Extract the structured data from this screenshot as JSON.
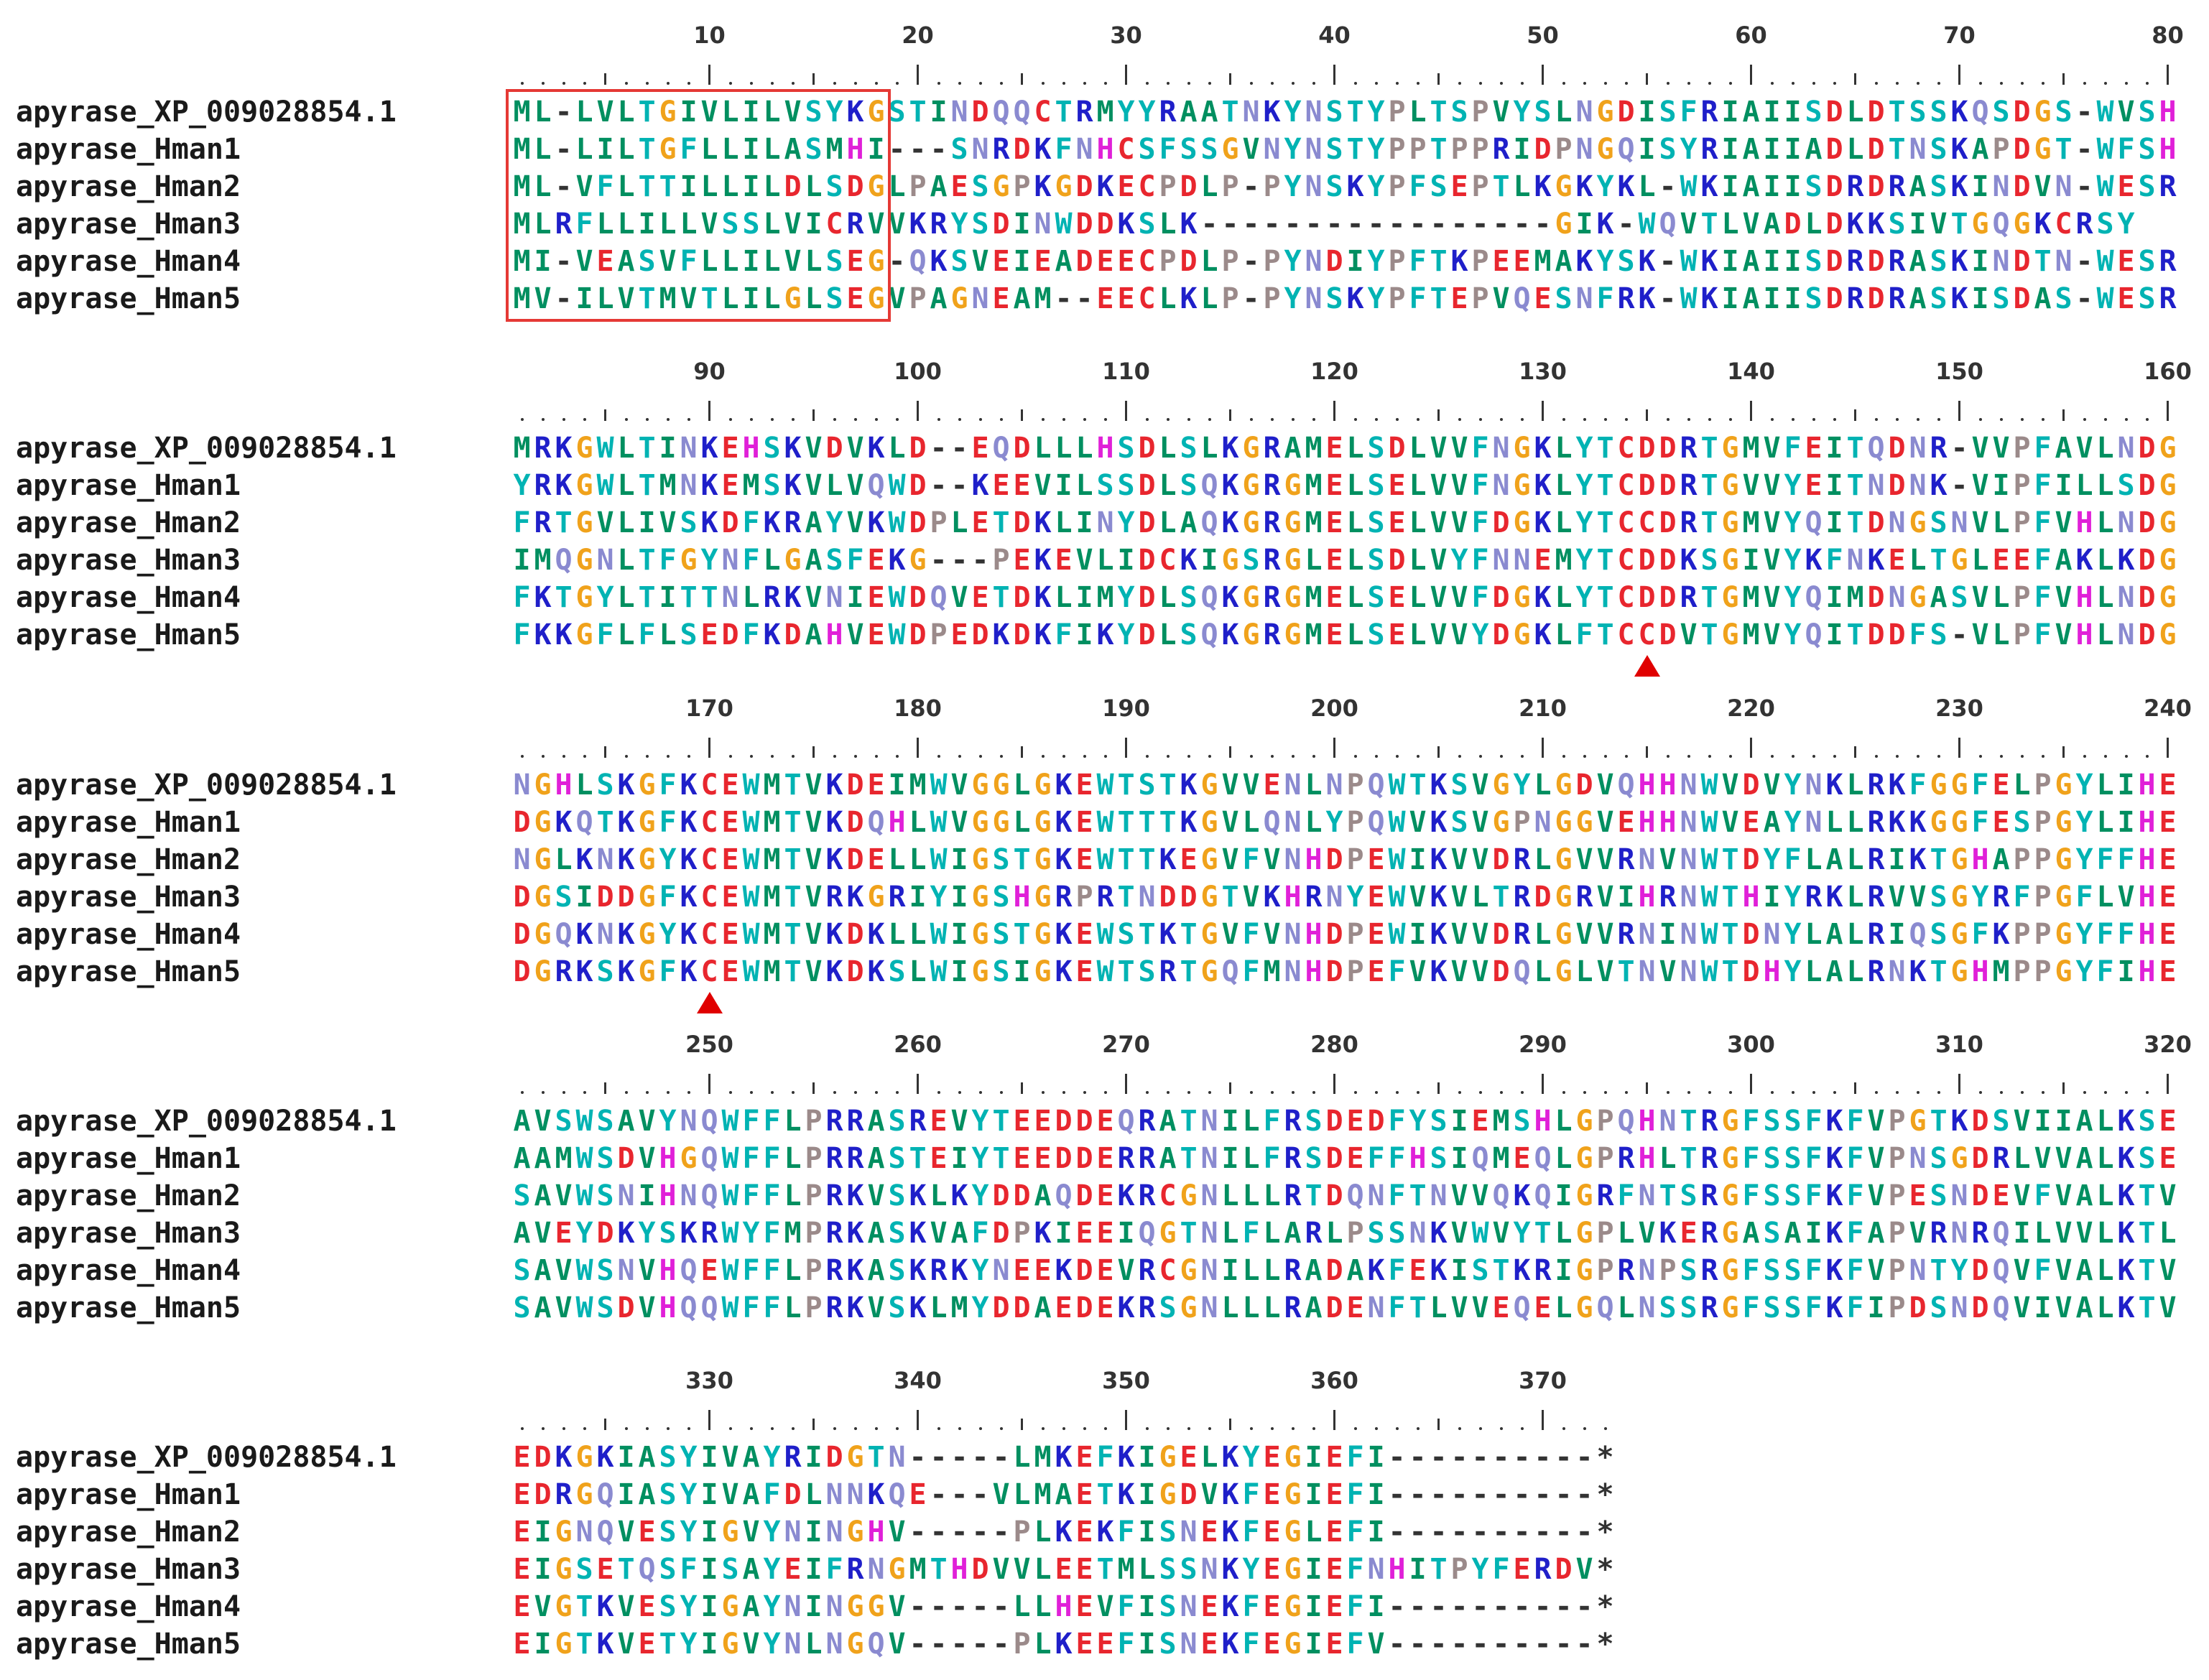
{
  "colors": {
    "hydrophobic": "#008f60",
    "polar": "#00b3b3",
    "acidic": "#e8262e",
    "basic": "#1f1fc9",
    "aromatic": "#1a9fd4",
    "glycine": "#f0a21b",
    "proline": "#9b8a8a",
    "his": "#e020d8",
    "amide": "#8a8ad0",
    "gap": "#333333",
    "highlight_box": "#e53935",
    "marker": "#e00000"
  },
  "blocks": [
    {
      "start": 1,
      "numbers": [
        "10",
        "20",
        "30",
        "40",
        "50",
        "60",
        "70",
        "80"
      ],
      "rows": [
        {
          "name": "apyrase_XP_009028854.1",
          "seq": "ML-LVLTGIVLILVSYKGSTINDQQCTRMYYRAATNKYNSTYPLTSPVYSLNGDISFRIAIISDLDTSSKQSDGS-WVSH"
        },
        {
          "name": "apyrase_Hman1",
          "seq": "ML-LILTGFLLILASMHI---SNRDKFNHCSFSSGVNYNSTYPPTPPRIDPNGQISYRIAIIADLDTNSKAPDGT-WFSH"
        },
        {
          "name": "apyrase_Hman2",
          "seq": "ML-VFLTTILLILDLSDGLPAESGPKGDKECPDLP-PYNSKYPFSEPTLKGKYKL-WKIAIISDRDRASKINDVN-WESR"
        },
        {
          "name": "apyrase_Hman3",
          "seq": "MLRFLLILLVSSLVICRVVKRYSDINWDDKSLK-----------------GIK-WQVTLVADLDKKSIVTGQGKCRSY"
        },
        {
          "name": "apyrase_Hman4",
          "seq": "MI-VEASVFLLILVLSEG-QKSVEIEADEECPDLP-PYNDIYPFTKPEEMAKYSK-WKIAIISDRDRASKINDTN-WESR"
        },
        {
          "name": "apyrase_Hman5",
          "seq": "MV-ILVTMVTLILGLSEGVPAGNEAM--EECLKLP-PYNSKYPFTEPVQESNFRK-WKIAIISDRDRASKISDAS-WESR"
        }
      ]
    },
    {
      "start": 81,
      "numbers": [
        "90",
        "100",
        "110",
        "120",
        "130",
        "140",
        "150",
        "160"
      ],
      "rows": [
        {
          "name": "apyrase_XP_009028854.1",
          "seq": "MRKGWLTINKEHSKVDVKLD--EQDLLLHSDLSLKGRAMELSDLVVFNGKLYTCDDRTGMVFEITQDNR-VVPFAVLNDG"
        },
        {
          "name": "apyrase_Hman1",
          "seq": "YRKGWLTMNKEMSKVLVQWD--KEEVILSSDLSQKGRGMELSELVVFNGKLYTCDDRTGVVYEITNDNK-VIPFILLSDG"
        },
        {
          "name": "apyrase_Hman2",
          "seq": "FRTGVLIVSKDFKRAYVKWDPLETDKLINYDLAQKGRGMELSELVVFDGKLYTCCDRTGMVYQITDNGSNVLPFVHLNDG"
        },
        {
          "name": "apyrase_Hman3",
          "seq": "IMQGNLTFGYNFLGASFEKG---PEKEVLIDCKIGSRGLELSDLVYFNNEMYTCDDKSGIVYKFNKELTGLEEFAKLKDG"
        },
        {
          "name": "apyrase_Hman4",
          "seq": "FKTGYLTITTNLRKVNIEWDQVETDKLIMYDLSQKGRGMELSELVVFDGKLYTCDDRTGMVYQIMDNGASVLPFVHLNDG"
        },
        {
          "name": "apyrase_Hman5",
          "seq": "FKKGFLFLSEDFKDAHVEWDPEDKDKFIKYDLSQKGRGMELSELVVYDGKLFTCCDVTGMVYQITDDFS-VLPFVHLNDG"
        }
      ]
    },
    {
      "start": 161,
      "numbers": [
        "170",
        "180",
        "190",
        "200",
        "210",
        "220",
        "230",
        "240"
      ],
      "rows": [
        {
          "name": "apyrase_XP_009028854.1",
          "seq": "NGHLSKGFKCEWMTVKDEIMWVGGLGKEWTSTKGVVENLNPQWTKSVGYLGDVQHHNWVDVYNKLRKFGGFELPGYLIHE"
        },
        {
          "name": "apyrase_Hman1",
          "seq": "DGKQTKGFKCEWMTVKDQHLWVGGLGKEWTTTKGVLQNLYPQWVKSVGPNGGVEHHNWVEAYNLLRKKGGFESPGYLIHE"
        },
        {
          "name": "apyrase_Hman2",
          "seq": "NGLKNKGYKCEWMTVKDELLWIGSTGKEWTTKEGVFVNHDPEWIKVVDRLGVVRNVNWTDYFLALRIKTGHAPPGYFFHE"
        },
        {
          "name": "apyrase_Hman3",
          "seq": "DGSIDDGFKCEWMTVRKGRIYIGSHGRPRTNDDGTVKHRNYEWVKVLTRDGRVIHRNWTHIYRKLRVVSGYRFPGFLVHE"
        },
        {
          "name": "apyrase_Hman4",
          "seq": "DGQKNKGYKCEWMTVKDKLLWIGSTGKEWSTKTGVFVNHDPEWIKVVDRLGVVRNINWTDNYLALRIQSGFKPPGYFFHE"
        },
        {
          "name": "apyrase_Hman5",
          "seq": "DGRKSKGFKCEWMTVKDKSLWIGSIGKEWTSRTGQFMNHDPEFVKVVDQLGLVTNVNWTDHYLALRNKTGHMPPGYFIHE"
        }
      ]
    },
    {
      "start": 241,
      "numbers": [
        "250",
        "260",
        "270",
        "280",
        "290",
        "300",
        "310",
        "320"
      ],
      "rows": [
        {
          "name": "apyrase_XP_009028854.1",
          "seq": "AVSWSAVYNQWFFLPRRASREVYTEEDDEQRATNILFRSDEDFYSIEMSHLGPQHNTRGFSSFKFVPGTKDSVIIALKSE"
        },
        {
          "name": "apyrase_Hman1",
          "seq": "AAMWSDVHGQWFFLPRRASTEIYTEEDDERRATNILFRSDEFFHSIQMEQLGPRHLTRGFSSFKFVPNSGDRLVVALKSE"
        },
        {
          "name": "apyrase_Hman2",
          "seq": "SAVWSNIHNQWFFLPRKVSKLKYDDAQDEKRCGNLLLRTDQNFTNVVQKQIGRFNTSRGFSSFKFVPESNDEVFVALKTV"
        },
        {
          "name": "apyrase_Hman3",
          "seq": "AVEYDKYSKRWYFMPRKASKVAFDPKIEEIQGTNLFLARLPSSNKVWVYTLGPLVKERGASAIKFAPVRNRQILVVLKTL"
        },
        {
          "name": "apyrase_Hman4",
          "seq": "SAVWSNVHQEWFFLPRKASKRKYNEEKDEVRCGNILLRADAKFEKISTKRIGPRNPSRGFSSFKFVPNTYDQVFVALKTV"
        },
        {
          "name": "apyrase_Hman5",
          "seq": "SAVWSDVHQQWFFLPRKVSKLMYDDAEDEKRSGNLLLRADENFTLVVEQELGQLNSSRGFSSFKFIPDSNDQVIVALKTV"
        }
      ]
    },
    {
      "start": 321,
      "numbers": [
        "330",
        "340",
        "350",
        "360",
        "370"
      ],
      "rows": [
        {
          "name": "apyrase_XP_009028854.1",
          "seq": "EDKGKIASYIVAYRIDGTN-----LMKEFKIGELKYEGIEFI----------*"
        },
        {
          "name": "apyrase_Hman1",
          "seq": "EDRGQIASYIVAFDLNNKQE---VLMAETKIGDVKFEGIEFI----------*"
        },
        {
          "name": "apyrase_Hman2",
          "seq": "EIGNQVESYIGVYNINGHV-----PLKEKFISNEKFEGLEFI----------*"
        },
        {
          "name": "apyrase_Hman3",
          "seq": "EIGSETQSFISAYEIFRNGMTHDVVLEETMLSSNKYEGIEFNHITPYFERDV*"
        },
        {
          "name": "apyrase_Hman4",
          "seq": "EVGTKVESYIGAYNINGGV-----LLHEVFISNEKFEGIEFI----------*"
        },
        {
          "name": "apyrase_Hman5",
          "seq": "EIGTKVETYIGVYNLNGQV-----PLKEEFISNEKFEGIEFV----------*"
        }
      ]
    }
  ],
  "highlight": {
    "block": 0,
    "from_col": 0,
    "to_col": 17
  },
  "markers": [
    {
      "block": 1,
      "col": 54
    },
    {
      "block": 2,
      "col": 9
    }
  ]
}
